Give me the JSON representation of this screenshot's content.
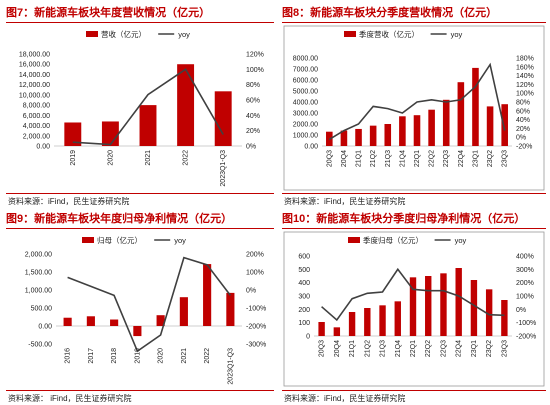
{
  "colors": {
    "accent": "#c00000",
    "bar": "#c00000",
    "line": "#404040",
    "border": "#999999"
  },
  "panels": [
    {
      "title": "图7：新能源车板块年度营收情况（亿元）",
      "source": "资料来源：iFind，民生证券研究院"
    },
    {
      "title": "图8：新能源车板块分季度营收情况（亿元）",
      "source": "资料来源：iFind，民生证券研究院"
    },
    {
      "title": "图9：新能源车板块年度归母净利情况（亿元）",
      "source": "资料来源：  iFind，民生证券研究院"
    },
    {
      "title": "图10：新能源车板块分季度归母净利情况（亿元）",
      "source": "资料来源：iFind，民生证券研究院"
    }
  ],
  "chart_data": [
    {
      "type": "bar",
      "title": "图7：新能源车板块年度营收情况（亿元）",
      "categories": [
        "2019",
        "2020",
        "2021",
        "2022",
        "2023Q1-Q3"
      ],
      "series": [
        {
          "name": "营收（亿元）",
          "kind": "bar",
          "axis": "left",
          "values": [
            4600,
            4800,
            8000,
            16000,
            10700
          ]
        },
        {
          "name": "yoy",
          "kind": "line",
          "axis": "right",
          "values": [
            5,
            2,
            67,
            100,
            15
          ]
        }
      ],
      "left_axis": {
        "min": 0,
        "max": 18000,
        "step": 2000,
        "tick_labels": [
          "0.00",
          "2,000.00",
          "4,000.00",
          "6,000.00",
          "8,000.00",
          "10,000.00",
          "12,000.00",
          "14,000.00",
          "16,000.00",
          "18,000.00"
        ]
      },
      "right_axis": {
        "min": 0,
        "max": 120,
        "step": 20,
        "tick_labels": [
          "0%",
          "20%",
          "40%",
          "60%",
          "80%",
          "100%",
          "120%"
        ]
      },
      "legend": "top-center"
    },
    {
      "type": "bar",
      "title": "图8：新能源车板块分季度营收情况（亿元）",
      "categories": [
        "20Q3",
        "20Q4",
        "21Q1",
        "21Q2",
        "21Q3",
        "21Q4",
        "22Q1",
        "22Q2",
        "22Q3",
        "22Q4",
        "23Q1",
        "23Q2",
        "23Q3"
      ],
      "series": [
        {
          "name": "季度营收（亿元）",
          "kind": "bar",
          "axis": "left",
          "values": [
            1300,
            1400,
            1550,
            1850,
            2000,
            2700,
            2800,
            3300,
            4200,
            5800,
            7100,
            3600,
            3800
          ]
        },
        {
          "name": "yoy",
          "kind": "line",
          "axis": "right",
          "values": [
            -5,
            15,
            30,
            70,
            65,
            55,
            80,
            85,
            80,
            85,
            115,
            165,
            15
          ]
        }
      ],
      "left_axis": {
        "min": 0,
        "max": 8000,
        "step": 1000,
        "tick_labels": [
          "0.00",
          "1000.00",
          "2000.00",
          "3000.00",
          "4000.00",
          "5000.00",
          "6000.00",
          "7000.00",
          "8000.00"
        ]
      },
      "right_axis": {
        "min": -20,
        "max": 180,
        "step": 20,
        "tick_labels": [
          "-20%",
          "0%",
          "20%",
          "40%",
          "60%",
          "80%",
          "100%",
          "120%",
          "140%",
          "160%",
          "180%"
        ]
      },
      "legend": "top-center"
    },
    {
      "type": "bar",
      "title": "图9：新能源车板块年度归母净利情况（亿元）",
      "categories": [
        "2016",
        "2017",
        "2018",
        "2019",
        "2020",
        "2021",
        "2022",
        "2023Q1-Q3"
      ],
      "series": [
        {
          "name": "归母（亿元）",
          "kind": "bar",
          "axis": "left",
          "values": [
            230,
            270,
            180,
            -280,
            300,
            800,
            1720,
            920
          ]
        },
        {
          "name": "yoy",
          "kind": "line",
          "axis": "right",
          "values": [
            70,
            20,
            -30,
            -340,
            -250,
            180,
            140,
            -30
          ]
        }
      ],
      "left_axis": {
        "min": -500,
        "max": 2000,
        "step": 500,
        "tick_labels": [
          "-500.00",
          "0.00",
          "500.00",
          "1,000.00",
          "1,500.00",
          "2,000.00"
        ]
      },
      "right_axis": {
        "min": -300,
        "max": 200,
        "step": 100,
        "tick_labels": [
          "-300%",
          "-200%",
          "-100%",
          "0%",
          "100%",
          "200%"
        ]
      },
      "legend": "top-center"
    },
    {
      "type": "bar",
      "title": "图10：新能源车板块分季度归母净利情况（亿元）",
      "categories": [
        "20Q3",
        "20Q4",
        "21Q1",
        "21Q2",
        "21Q3",
        "21Q4",
        "22Q1",
        "22Q2",
        "22Q3",
        "22Q4",
        "23Q1",
        "23Q2",
        "23Q3"
      ],
      "series": [
        {
          "name": "季度归母（亿元）",
          "kind": "bar",
          "axis": "left",
          "values": [
            105,
            65,
            180,
            210,
            230,
            260,
            440,
            450,
            470,
            510,
            420,
            350,
            270
          ]
        },
        {
          "name": "yoy",
          "kind": "line",
          "axis": "right",
          "values": [
            20,
            -80,
            80,
            120,
            130,
            300,
            150,
            140,
            140,
            100,
            30,
            -40,
            -45
          ]
        }
      ],
      "left_axis": {
        "min": 0,
        "max": 600,
        "step": 100,
        "tick_labels": [
          "0",
          "100",
          "200",
          "300",
          "400",
          "500",
          "600"
        ]
      },
      "right_axis": {
        "min": -200,
        "max": 400,
        "step": 100,
        "tick_labels": [
          "-200%",
          "-100%",
          "0%",
          "100%",
          "200%",
          "300%",
          "400%"
        ]
      },
      "legend": "top-center"
    }
  ]
}
